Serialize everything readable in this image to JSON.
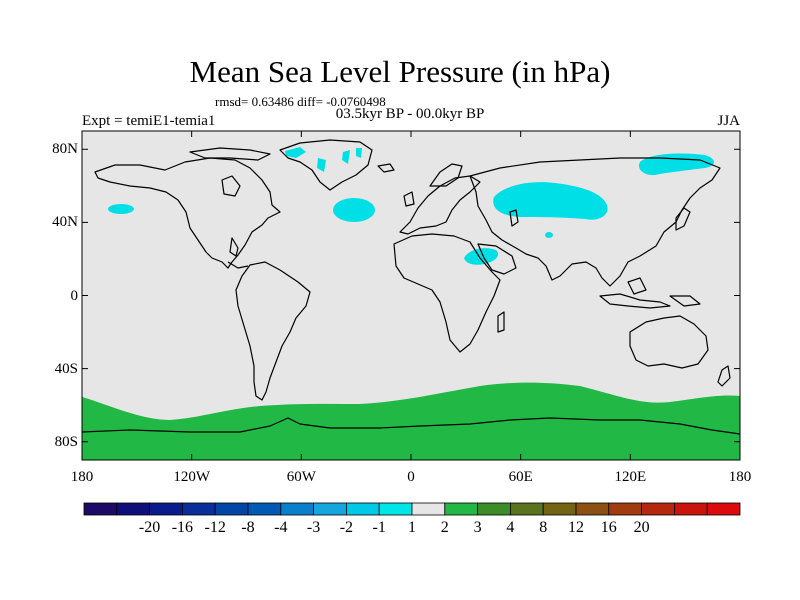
{
  "title": "Mean Sea Level Pressure (in hPa)",
  "stats": "rmsd= 0.63486 diff= -0.0760498",
  "period": "03.5kyr BP - 00.0kyr BP",
  "experiment": "Expt = temiE1-temia1",
  "season": "JJA",
  "colors": {
    "land_outline": "#000000",
    "ocean_background": "#e6e6e6",
    "negative_anomaly": "#00dfe6",
    "positive_anomaly": "#22b845"
  },
  "axes": {
    "lat_ticks": [
      {
        "value": 80,
        "label": "80N"
      },
      {
        "value": 40,
        "label": "40N"
      },
      {
        "value": 0,
        "label": "0"
      },
      {
        "value": -40,
        "label": "40S"
      },
      {
        "value": -80,
        "label": "80S"
      }
    ],
    "lon_ticks": [
      {
        "value": -180,
        "label": "180"
      },
      {
        "value": -120,
        "label": "120W"
      },
      {
        "value": -60,
        "label": "60W"
      },
      {
        "value": 0,
        "label": "0"
      },
      {
        "value": 60,
        "label": "60E"
      },
      {
        "value": 120,
        "label": "120E"
      },
      {
        "value": 180,
        "label": "180"
      }
    ],
    "lat_range": [
      -90,
      90
    ],
    "lon_range": [
      -180,
      180
    ]
  },
  "colorbar": {
    "colors": [
      "#1c0a66",
      "#0f0f7a",
      "#0a1c8c",
      "#0a2e99",
      "#0046a6",
      "#005ab3",
      "#0a80cc",
      "#14a6dc",
      "#00c8e6",
      "#00e6e6",
      "#e6e6e6",
      "#22b845",
      "#3c8c28",
      "#5a731e",
      "#736414",
      "#8c5014",
      "#a03c0f",
      "#b4280f",
      "#c8140a",
      "#dc0a0a"
    ],
    "labels": [
      "-20",
      "-16",
      "-12",
      "-8",
      "-4",
      "-3",
      "-2",
      "-1",
      "1",
      "2",
      "3",
      "4",
      "8",
      "12",
      "16",
      "20"
    ]
  }
}
